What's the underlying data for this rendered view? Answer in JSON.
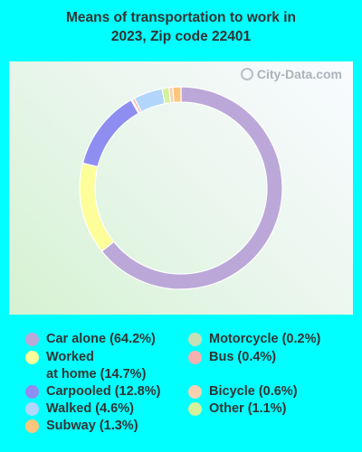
{
  "title_line1": "Means of transportation to work in",
  "title_line2": "2023, Zip code 22401",
  "watermark": "City-Data.com",
  "chart_data": {
    "type": "pie",
    "donut": true,
    "title": "Means of transportation to work in 2023, Zip code 22401",
    "slices": [
      {
        "label": "Car alone",
        "value": 64.2,
        "color": "#bba8d8"
      },
      {
        "label": "Worked at home",
        "value": 14.7,
        "color": "#fdfd9a"
      },
      {
        "label": "Carpooled",
        "value": 12.8,
        "color": "#8e8ef0"
      },
      {
        "label": "Motorcycle",
        "value": 0.2,
        "color": "#c7dfb6"
      },
      {
        "label": "Bus",
        "value": 0.4,
        "color": "#f6b0b0"
      },
      {
        "label": "Walked",
        "value": 4.6,
        "color": "#b2d6fb"
      },
      {
        "label": "Other",
        "value": 1.1,
        "color": "#d4f29a"
      },
      {
        "label": "Bicycle",
        "value": 0.6,
        "color": "#f7d0b0"
      },
      {
        "label": "Subway",
        "value": 1.3,
        "color": "#fcc77a"
      }
    ]
  },
  "legend": {
    "car_alone": "Car alone (64.2%)",
    "worked_at_home": "Worked\nat home (14.7%)",
    "carpooled": "Carpooled (12.8%)",
    "walked": "Walked (4.6%)",
    "subway": "Subway (1.3%)",
    "motorcycle": "Motorcycle (0.2%)",
    "bus": "Bus (0.4%)",
    "bicycle": "Bicycle (0.6%)",
    "other": "Other (1.1%)"
  }
}
